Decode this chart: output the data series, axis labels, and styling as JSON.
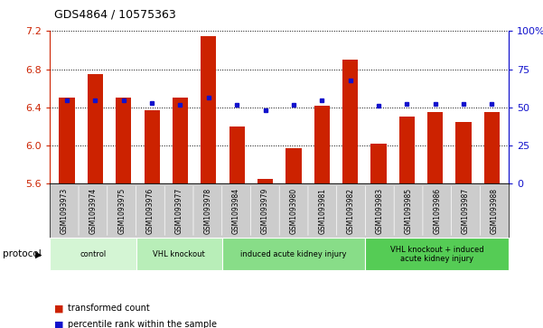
{
  "title": "GDS4864 / 10575363",
  "samples": [
    "GSM1093973",
    "GSM1093974",
    "GSM1093975",
    "GSM1093976",
    "GSM1093977",
    "GSM1093978",
    "GSM1093984",
    "GSM1093979",
    "GSM1093980",
    "GSM1093981",
    "GSM1093982",
    "GSM1093983",
    "GSM1093985",
    "GSM1093986",
    "GSM1093987",
    "GSM1093988"
  ],
  "bar_values": [
    6.5,
    6.75,
    6.5,
    6.37,
    6.5,
    7.15,
    6.2,
    5.65,
    5.97,
    6.42,
    6.9,
    6.02,
    6.3,
    6.35,
    6.25,
    6.35
  ],
  "dot_values": [
    6.47,
    6.47,
    6.47,
    6.45,
    6.43,
    6.5,
    6.43,
    6.37,
    6.43,
    6.47,
    6.68,
    6.42,
    6.44,
    6.44,
    6.44,
    6.44
  ],
  "ylim_left": [
    5.6,
    7.2
  ],
  "ylim_right": [
    0,
    100
  ],
  "yticks_left": [
    5.6,
    6.0,
    6.4,
    6.8,
    7.2
  ],
  "yticks_right": [
    0,
    25,
    50,
    75,
    100
  ],
  "bar_color": "#CC2200",
  "dot_color": "#1111CC",
  "bar_bottom": 5.6,
  "groups": [
    {
      "label": "control",
      "start": 0,
      "end": 3,
      "color": "#d4f5d4"
    },
    {
      "label": "VHL knockout",
      "start": 3,
      "end": 6,
      "color": "#b8eeb8"
    },
    {
      "label": "induced acute kidney injury",
      "start": 6,
      "end": 11,
      "color": "#88dd88"
    },
    {
      "label": "VHL knockout + induced\nacute kidney injury",
      "start": 11,
      "end": 16,
      "color": "#55cc55"
    }
  ],
  "legend_items": [
    {
      "label": "transformed count",
      "color": "#CC2200"
    },
    {
      "label": "percentile rank within the sample",
      "color": "#1111CC"
    }
  ],
  "bg_color": "#ffffff",
  "label_area_color": "#cccccc",
  "protocol_label": "protocol"
}
